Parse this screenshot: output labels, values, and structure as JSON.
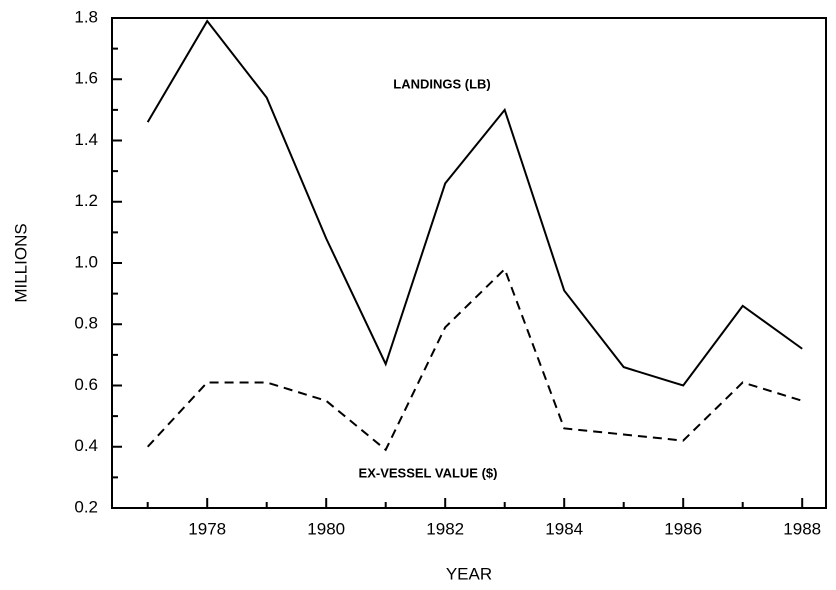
{
  "chart_data": {
    "type": "line",
    "y_label": "MILLIONS",
    "x_label": "YEAR",
    "x": [
      1977,
      1978,
      1979,
      1980,
      1981,
      1982,
      1983,
      1984,
      1985,
      1986,
      1987,
      1988
    ],
    "series": [
      {
        "name": "LANDINGS (LB)",
        "color": "#000000",
        "dash": "solid",
        "values": [
          1.46,
          1.79,
          1.54,
          1.08,
          0.67,
          1.26,
          1.5,
          0.91,
          0.66,
          0.6,
          0.86,
          0.72
        ]
      },
      {
        "name": "EX-VESSEL VALUE ($)",
        "color": "#000000",
        "dash": "dashed",
        "values": [
          0.4,
          0.61,
          0.61,
          0.55,
          0.39,
          0.79,
          0.98,
          0.46,
          0.44,
          0.42,
          0.61,
          0.55
        ]
      }
    ],
    "xlim": [
      1976.4,
      1988.4
    ],
    "xticks": [
      1978,
      1980,
      1982,
      1984,
      1986,
      1988
    ],
    "ylim": [
      0.2,
      1.8
    ],
    "yticks": [
      0.2,
      0.4,
      0.6,
      0.8,
      {
        "value": 1,
        "label": "1.0"
      },
      1.2,
      1.4,
      1.6,
      1.8
    ],
    "grid": false
  }
}
